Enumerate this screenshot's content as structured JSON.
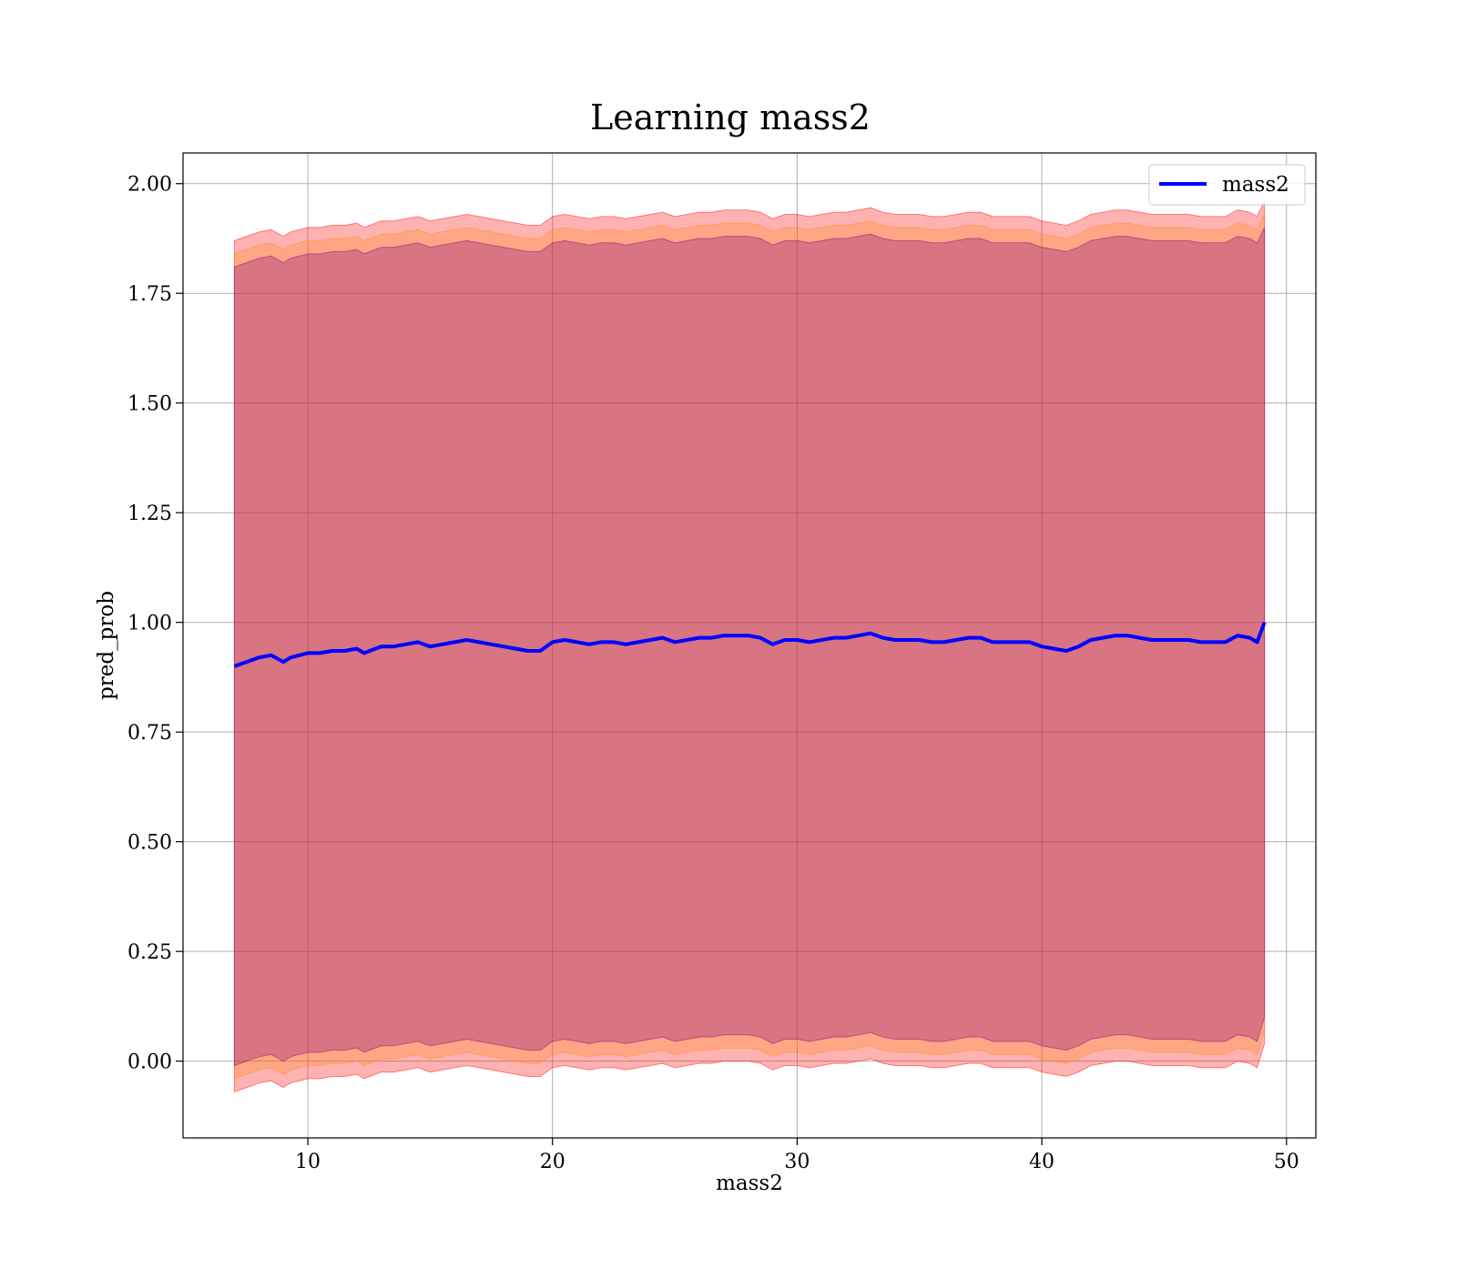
{
  "chart_data": {
    "type": "line",
    "title": "Learning mass2",
    "xlabel": "mass2",
    "ylabel": "pred_prob",
    "xlim": [
      4.9,
      51.2
    ],
    "ylim": [
      -0.175,
      2.07
    ],
    "x_ticks": [
      10,
      20,
      30,
      40,
      50
    ],
    "y_ticks": [
      0.0,
      0.25,
      0.5,
      0.75,
      1.0,
      1.25,
      1.5,
      1.75,
      2.0
    ],
    "grid": true,
    "legend_position": "top-right",
    "series": [
      {
        "name": "mass2",
        "color": "#0000ff",
        "x": [
          7.0,
          7.5,
          8.0,
          8.5,
          9.0,
          9.3,
          10.0,
          10.5,
          11.0,
          11.5,
          12.0,
          12.3,
          13.0,
          13.5,
          14.0,
          14.5,
          15.0,
          15.5,
          16.0,
          16.5,
          17.0,
          17.5,
          18.0,
          18.5,
          19.0,
          19.5,
          20.0,
          20.5,
          21.0,
          21.5,
          22.0,
          22.5,
          23.0,
          23.5,
          24.0,
          24.5,
          25.0,
          25.5,
          26.0,
          26.5,
          27.0,
          27.5,
          28.0,
          28.5,
          29.0,
          29.5,
          30.0,
          30.5,
          31.0,
          31.5,
          32.0,
          32.5,
          33.0,
          33.5,
          34.0,
          34.5,
          35.0,
          35.5,
          36.0,
          36.5,
          37.0,
          37.5,
          38.0,
          38.5,
          39.0,
          39.5,
          40.0,
          40.5,
          41.0,
          41.5,
          42.0,
          42.5,
          43.0,
          43.5,
          44.0,
          44.5,
          45.0,
          45.5,
          46.0,
          46.5,
          47.0,
          47.5,
          48.0,
          48.5,
          48.8,
          49.1
        ],
        "values": [
          0.9,
          0.91,
          0.92,
          0.925,
          0.91,
          0.92,
          0.93,
          0.93,
          0.935,
          0.935,
          0.94,
          0.93,
          0.945,
          0.945,
          0.95,
          0.955,
          0.945,
          0.95,
          0.955,
          0.96,
          0.955,
          0.95,
          0.945,
          0.94,
          0.935,
          0.935,
          0.955,
          0.96,
          0.955,
          0.95,
          0.955,
          0.955,
          0.95,
          0.955,
          0.96,
          0.965,
          0.955,
          0.96,
          0.965,
          0.965,
          0.97,
          0.97,
          0.97,
          0.965,
          0.95,
          0.96,
          0.96,
          0.955,
          0.96,
          0.965,
          0.965,
          0.97,
          0.975,
          0.965,
          0.96,
          0.96,
          0.96,
          0.955,
          0.955,
          0.96,
          0.965,
          0.965,
          0.955,
          0.955,
          0.955,
          0.955,
          0.945,
          0.94,
          0.935,
          0.945,
          0.96,
          0.965,
          0.97,
          0.97,
          0.965,
          0.96,
          0.96,
          0.96,
          0.96,
          0.955,
          0.955,
          0.955,
          0.97,
          0.965,
          0.955,
          1.0
        ]
      }
    ],
    "bands": [
      {
        "color": "#ff0000",
        "opacity": 0.3,
        "lower": [
          -0.07,
          -0.06,
          -0.05,
          -0.045,
          -0.06,
          -0.05,
          -0.04,
          -0.04,
          -0.035,
          -0.035,
          -0.03,
          -0.04,
          -0.025,
          -0.025,
          -0.02,
          -0.015,
          -0.025,
          -0.02,
          -0.015,
          -0.01,
          -0.015,
          -0.02,
          -0.025,
          -0.03,
          -0.035,
          -0.035,
          -0.015,
          -0.01,
          -0.015,
          -0.02,
          -0.015,
          -0.015,
          -0.02,
          -0.015,
          -0.01,
          -0.005,
          -0.015,
          -0.01,
          -0.005,
          -0.005,
          0.0,
          0.0,
          0.0,
          -0.005,
          -0.02,
          -0.01,
          -0.01,
          -0.015,
          -0.01,
          -0.005,
          -0.005,
          0.0,
          0.005,
          -0.005,
          -0.01,
          -0.01,
          -0.01,
          -0.015,
          -0.015,
          -0.01,
          -0.005,
          -0.005,
          -0.015,
          -0.015,
          -0.015,
          -0.015,
          -0.025,
          -0.03,
          -0.035,
          -0.025,
          -0.01,
          -0.005,
          0.0,
          0.0,
          -0.005,
          -0.01,
          -0.01,
          -0.01,
          -0.01,
          -0.015,
          -0.015,
          -0.015,
          0.0,
          -0.005,
          -0.015,
          0.04
        ],
        "upper": [
          1.87,
          1.88,
          1.89,
          1.895,
          1.88,
          1.89,
          1.9,
          1.9,
          1.905,
          1.905,
          1.91,
          1.9,
          1.915,
          1.915,
          1.92,
          1.925,
          1.915,
          1.92,
          1.925,
          1.93,
          1.925,
          1.92,
          1.915,
          1.91,
          1.905,
          1.905,
          1.925,
          1.93,
          1.925,
          1.92,
          1.925,
          1.925,
          1.92,
          1.925,
          1.93,
          1.935,
          1.925,
          1.93,
          1.935,
          1.935,
          1.94,
          1.94,
          1.94,
          1.935,
          1.92,
          1.93,
          1.93,
          1.925,
          1.93,
          1.935,
          1.935,
          1.94,
          1.945,
          1.935,
          1.93,
          1.93,
          1.93,
          1.925,
          1.925,
          1.93,
          1.935,
          1.935,
          1.925,
          1.925,
          1.925,
          1.925,
          1.915,
          1.91,
          1.905,
          1.915,
          1.93,
          1.935,
          1.94,
          1.94,
          1.935,
          1.93,
          1.93,
          1.93,
          1.93,
          1.925,
          1.925,
          1.925,
          1.94,
          1.935,
          1.925,
          1.96
        ]
      },
      {
        "color": "#ff8c1a",
        "opacity": 0.3,
        "lower": [
          -0.04,
          -0.03,
          -0.02,
          -0.015,
          -0.03,
          -0.02,
          -0.01,
          -0.01,
          -0.005,
          -0.005,
          0.0,
          -0.01,
          0.005,
          0.005,
          0.01,
          0.015,
          0.005,
          0.01,
          0.015,
          0.02,
          0.015,
          0.01,
          0.005,
          0.0,
          -0.005,
          -0.005,
          0.015,
          0.02,
          0.015,
          0.01,
          0.015,
          0.015,
          0.01,
          0.015,
          0.02,
          0.025,
          0.015,
          0.02,
          0.025,
          0.025,
          0.03,
          0.03,
          0.03,
          0.025,
          0.01,
          0.02,
          0.02,
          0.015,
          0.02,
          0.025,
          0.025,
          0.03,
          0.035,
          0.025,
          0.02,
          0.02,
          0.02,
          0.015,
          0.015,
          0.02,
          0.025,
          0.025,
          0.015,
          0.015,
          0.015,
          0.015,
          0.005,
          0.0,
          -0.005,
          0.005,
          0.02,
          0.025,
          0.03,
          0.03,
          0.025,
          0.02,
          0.02,
          0.02,
          0.02,
          0.015,
          0.015,
          0.015,
          0.03,
          0.025,
          0.015,
          0.07
        ],
        "upper": [
          1.84,
          1.85,
          1.86,
          1.865,
          1.85,
          1.86,
          1.87,
          1.87,
          1.875,
          1.875,
          1.88,
          1.87,
          1.885,
          1.885,
          1.89,
          1.895,
          1.885,
          1.89,
          1.895,
          1.9,
          1.895,
          1.89,
          1.885,
          1.88,
          1.875,
          1.875,
          1.895,
          1.9,
          1.895,
          1.89,
          1.895,
          1.895,
          1.89,
          1.895,
          1.9,
          1.905,
          1.895,
          1.9,
          1.905,
          1.905,
          1.91,
          1.91,
          1.91,
          1.905,
          1.89,
          1.9,
          1.9,
          1.895,
          1.9,
          1.905,
          1.905,
          1.91,
          1.915,
          1.905,
          1.9,
          1.9,
          1.9,
          1.895,
          1.895,
          1.9,
          1.905,
          1.905,
          1.895,
          1.895,
          1.895,
          1.895,
          1.885,
          1.88,
          1.875,
          1.885,
          1.9,
          1.905,
          1.91,
          1.91,
          1.905,
          1.9,
          1.9,
          1.9,
          1.9,
          1.895,
          1.895,
          1.895,
          1.91,
          1.905,
          1.895,
          1.93
        ]
      },
      {
        "color": "#800080",
        "opacity": 0.3,
        "lower": [
          -0.01,
          0.0,
          0.01,
          0.015,
          0.0,
          0.01,
          0.02,
          0.02,
          0.025,
          0.025,
          0.03,
          0.02,
          0.035,
          0.035,
          0.04,
          0.045,
          0.035,
          0.04,
          0.045,
          0.05,
          0.045,
          0.04,
          0.035,
          0.03,
          0.025,
          0.025,
          0.045,
          0.05,
          0.045,
          0.04,
          0.045,
          0.045,
          0.04,
          0.045,
          0.05,
          0.055,
          0.045,
          0.05,
          0.055,
          0.055,
          0.06,
          0.06,
          0.06,
          0.055,
          0.04,
          0.05,
          0.05,
          0.045,
          0.05,
          0.055,
          0.055,
          0.06,
          0.065,
          0.055,
          0.05,
          0.05,
          0.05,
          0.045,
          0.045,
          0.05,
          0.055,
          0.055,
          0.045,
          0.045,
          0.045,
          0.045,
          0.035,
          0.03,
          0.025,
          0.035,
          0.05,
          0.055,
          0.06,
          0.06,
          0.055,
          0.05,
          0.05,
          0.05,
          0.05,
          0.045,
          0.045,
          0.045,
          0.06,
          0.055,
          0.045,
          0.1
        ],
        "upper": [
          1.81,
          1.82,
          1.83,
          1.835,
          1.82,
          1.83,
          1.84,
          1.84,
          1.845,
          1.845,
          1.85,
          1.84,
          1.855,
          1.855,
          1.86,
          1.865,
          1.855,
          1.86,
          1.865,
          1.87,
          1.865,
          1.86,
          1.855,
          1.85,
          1.845,
          1.845,
          1.865,
          1.87,
          1.865,
          1.86,
          1.865,
          1.865,
          1.86,
          1.865,
          1.87,
          1.875,
          1.865,
          1.87,
          1.875,
          1.875,
          1.88,
          1.88,
          1.88,
          1.875,
          1.86,
          1.87,
          1.87,
          1.865,
          1.87,
          1.875,
          1.875,
          1.88,
          1.885,
          1.875,
          1.87,
          1.87,
          1.87,
          1.865,
          1.865,
          1.87,
          1.875,
          1.875,
          1.865,
          1.865,
          1.865,
          1.865,
          1.855,
          1.85,
          1.845,
          1.855,
          1.87,
          1.875,
          1.88,
          1.88,
          1.875,
          1.87,
          1.87,
          1.87,
          1.87,
          1.865,
          1.865,
          1.865,
          1.88,
          1.875,
          1.865,
          1.9
        ]
      }
    ]
  }
}
